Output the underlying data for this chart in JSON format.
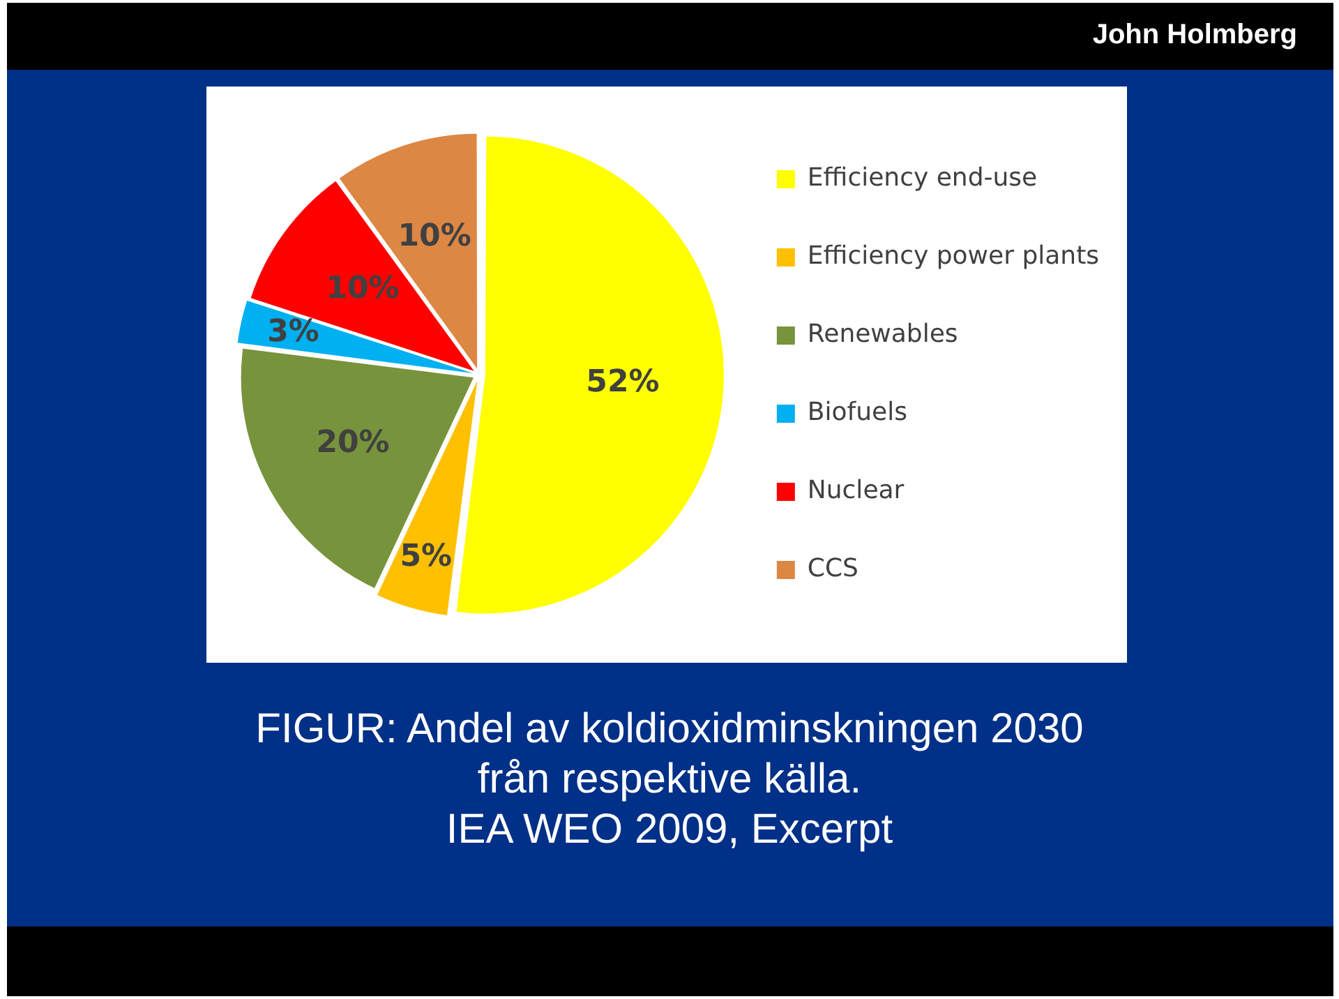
{
  "chart_data": {
    "type": "pie",
    "title": "FIGUR: Andel av koldioxidminskningen 2030 från respektive källa.",
    "categories": [
      "Efficiency end-use",
      "Efficiency power plants",
      "Renewables",
      "Biofuels",
      "Nuclear",
      "CCS"
    ],
    "values": [
      52,
      5,
      20,
      3,
      10,
      10
    ],
    "colors": [
      "#ffff00",
      "#ffc000",
      "#77933c",
      "#00b0f0",
      "#ff0000",
      "#dd8744"
    ],
    "value_labels": [
      "52%",
      "5%",
      "20%",
      "3%",
      "10%",
      "10%"
    ],
    "legend": "right",
    "annotations": [
      "John Holmberg",
      "IEA WEO 2009, Excerpt"
    ]
  }
}
